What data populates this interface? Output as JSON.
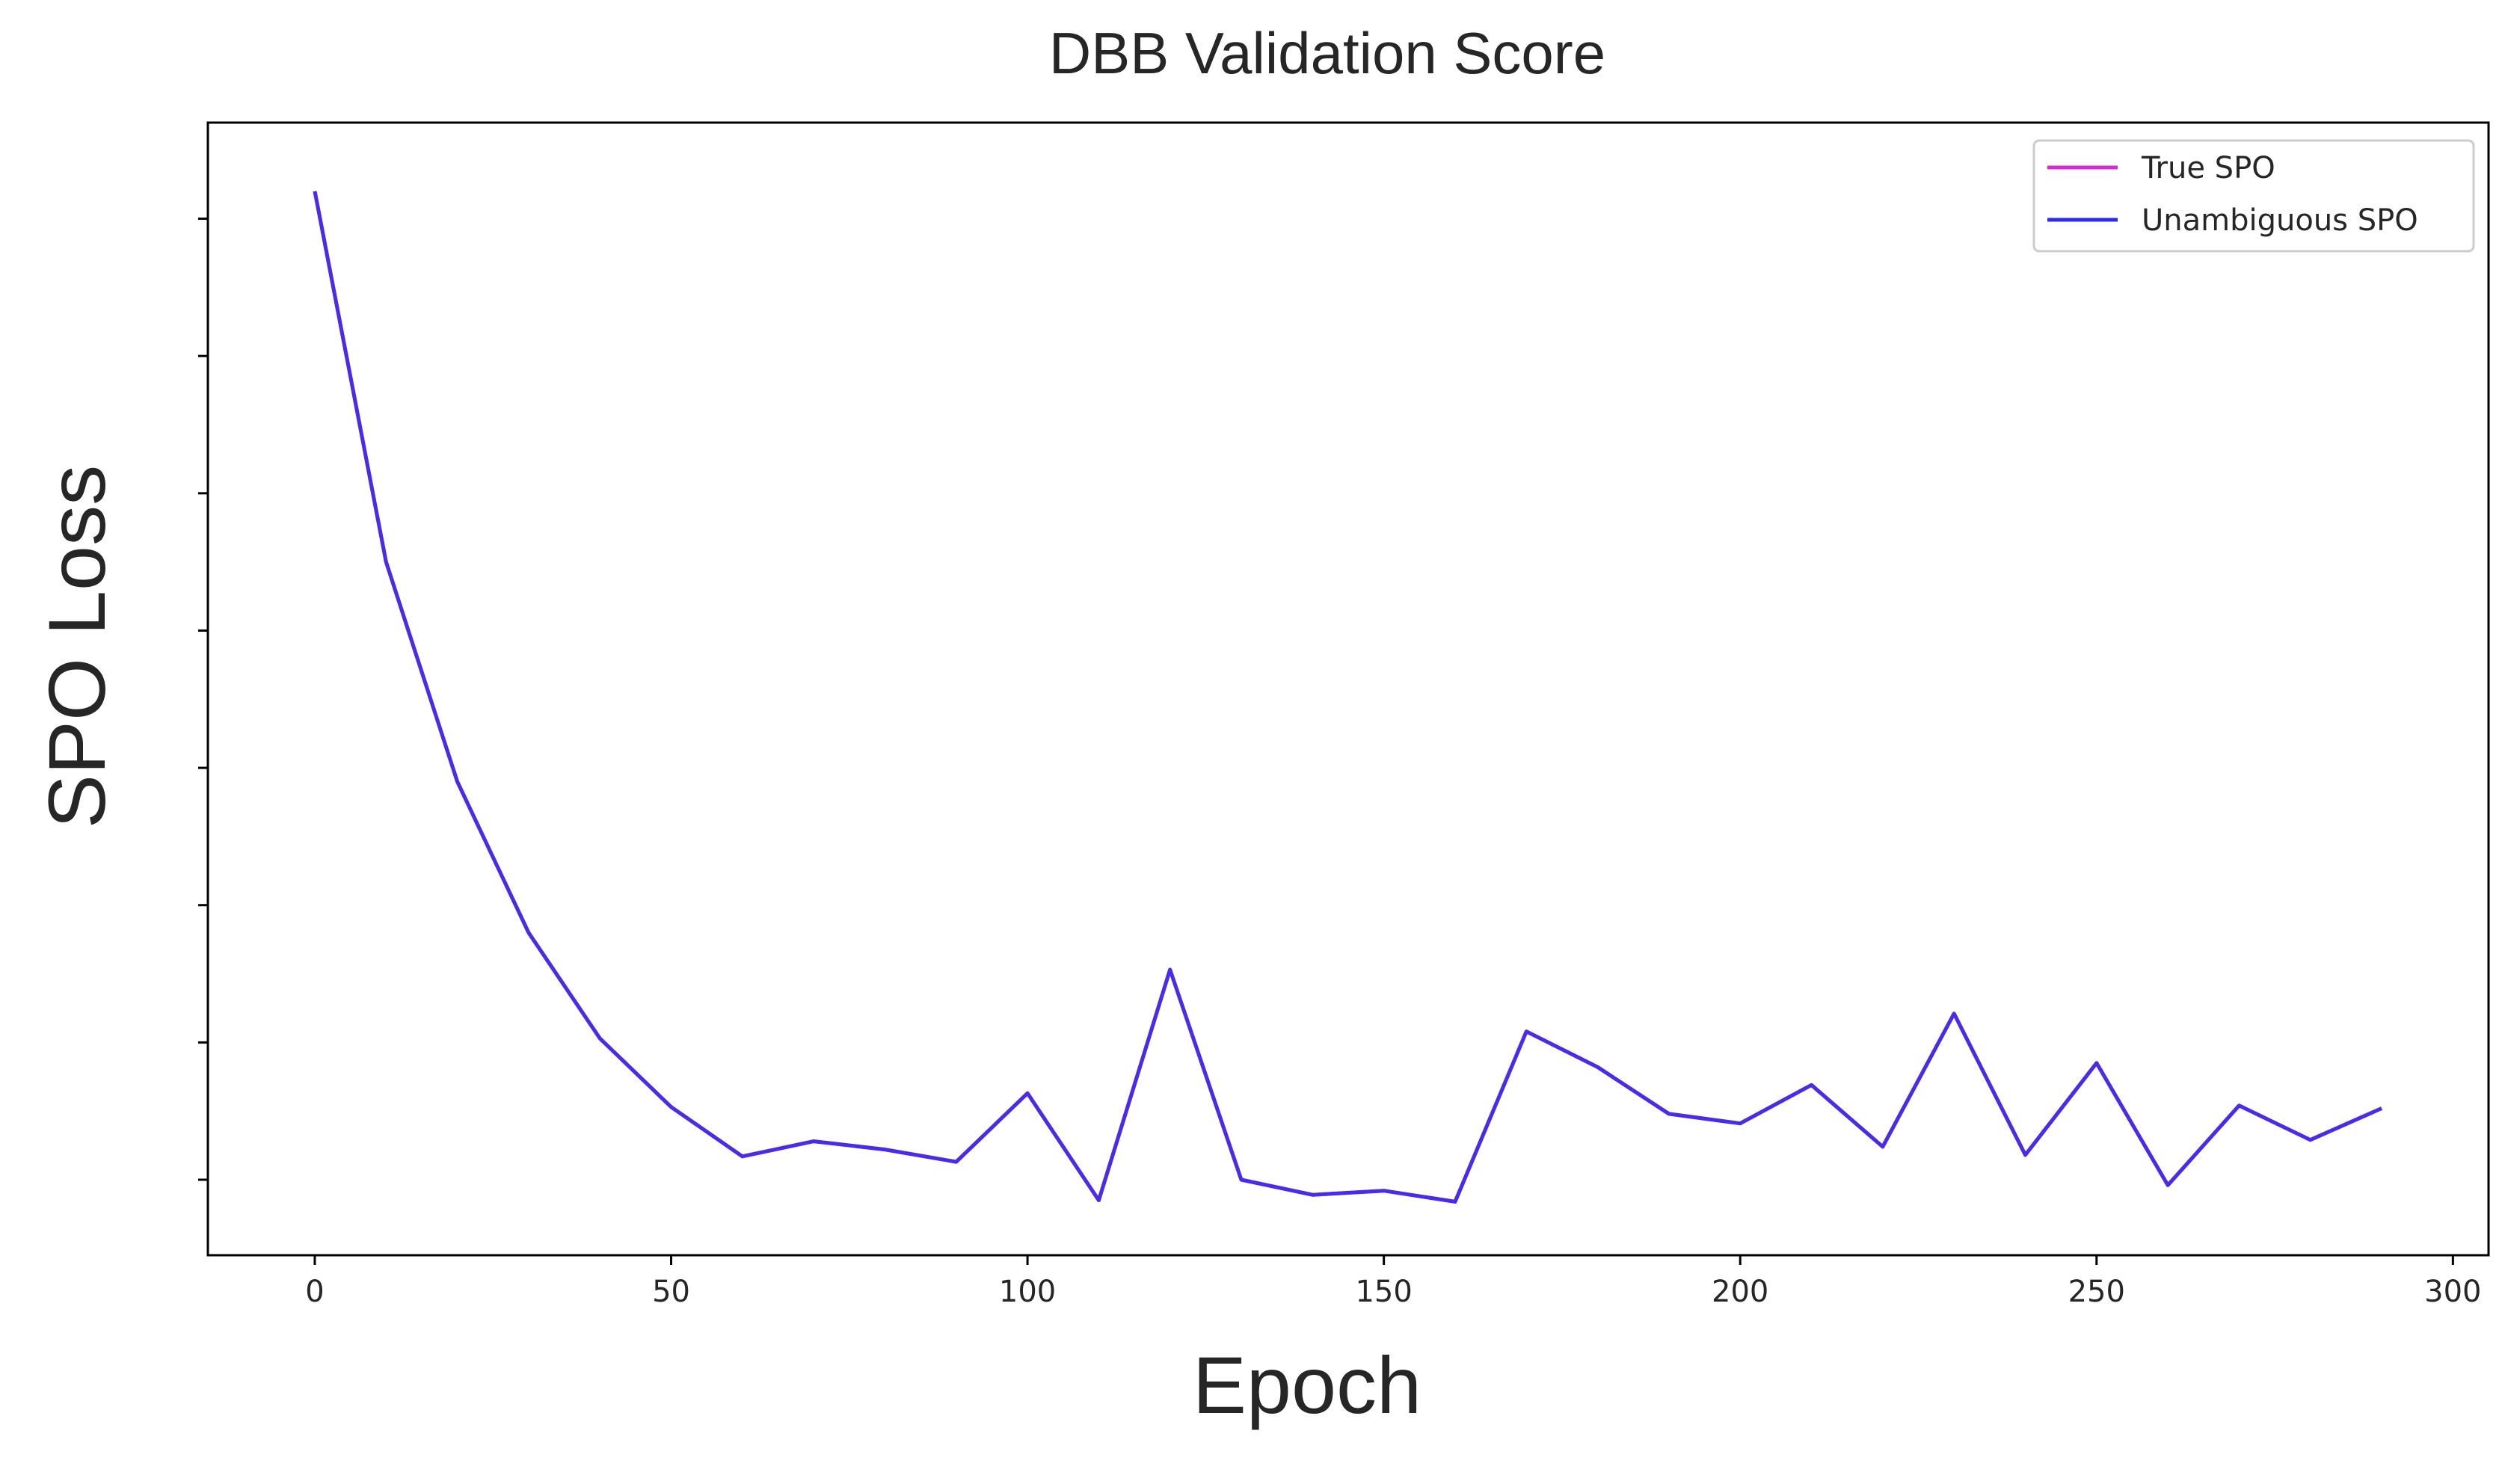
{
  "chart_data": {
    "type": "line",
    "title": "DBB Validation Score",
    "xlabel": "Epoch",
    "ylabel": "SPO Loss",
    "xlim": [
      -15,
      305
    ],
    "ylim": [
      -0.055,
      0.77
    ],
    "x_ticks": [
      0,
      50,
      100,
      150,
      200,
      250,
      300
    ],
    "x_tick_labels": [
      "0",
      "50",
      "100",
      "150",
      "200",
      "250",
      "300"
    ],
    "y_tick_labels_shown": false,
    "y_tick_values": [
      0.0,
      0.1,
      0.2,
      0.3,
      0.4,
      0.5,
      0.6,
      0.7
    ],
    "grid": false,
    "legend_position": "upper right",
    "x": [
      0,
      10,
      20,
      30,
      40,
      50,
      60,
      70,
      80,
      90,
      100,
      110,
      120,
      130,
      140,
      150,
      160,
      170,
      180,
      190,
      200,
      210,
      220,
      230,
      240,
      250,
      260,
      270,
      280,
      290
    ],
    "series": [
      {
        "name": "True SPO",
        "color": "#d02ed0",
        "values": [
          0.72,
          0.45,
          0.29,
          0.18,
          0.103,
          0.053,
          0.017,
          0.028,
          0.022,
          0.013,
          0.063,
          -0.015,
          0.153,
          0.0,
          -0.011,
          -0.008,
          -0.016,
          0.108,
          0.082,
          0.048,
          0.041,
          0.069,
          0.024,
          0.121,
          0.018,
          0.085,
          -0.004,
          0.054,
          0.029,
          0.052
        ]
      },
      {
        "name": "Unambiguous SPO",
        "color": "#2b2bf0",
        "values": [
          0.72,
          0.45,
          0.29,
          0.18,
          0.103,
          0.053,
          0.017,
          0.028,
          0.022,
          0.013,
          0.063,
          -0.015,
          0.153,
          0.0,
          -0.011,
          -0.008,
          -0.016,
          0.108,
          0.082,
          0.048,
          0.041,
          0.069,
          0.024,
          0.121,
          0.018,
          0.085,
          -0.004,
          0.054,
          0.029,
          0.052
        ]
      }
    ]
  }
}
